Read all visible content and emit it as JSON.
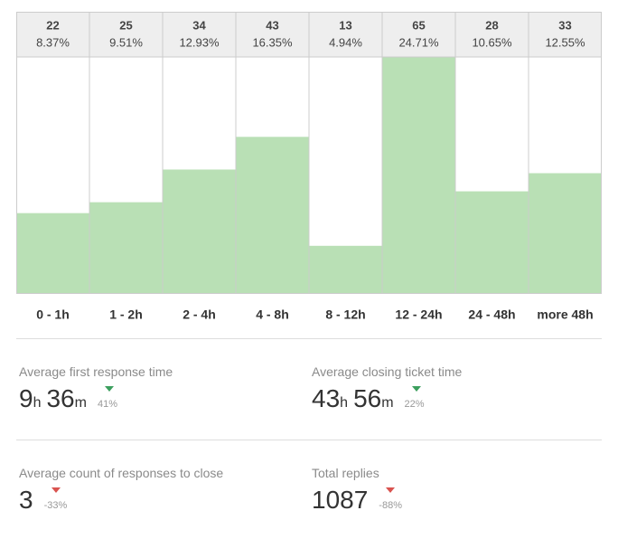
{
  "chart_data": {
    "type": "bar",
    "categories": [
      "0 - 1h",
      "1 - 2h",
      "2 - 4h",
      "4 - 8h",
      "8 - 12h",
      "12 - 24h",
      "24 - 48h",
      "more 48h"
    ],
    "values": [
      22,
      25,
      34,
      43,
      13,
      65,
      28,
      33
    ],
    "percent_labels": [
      "8.37%",
      "9.51%",
      "12.93%",
      "16.35%",
      "4.94%",
      "24.71%",
      "10.65%",
      "12.55%"
    ],
    "color": "#b9e0b5",
    "ylim": [
      0,
      65
    ]
  },
  "stats": [
    {
      "label": "Average first response time",
      "value": [
        {
          "number": 9,
          "unit": "h"
        },
        {
          "number": 36,
          "unit": "m"
        }
      ],
      "change": "41%",
      "trend_color": "#3c9f5e"
    },
    {
      "label": "Average closing ticket time",
      "value": [
        {
          "number": 43,
          "unit": "h"
        },
        {
          "number": 56,
          "unit": "m"
        }
      ],
      "change": "22%",
      "trend_color": "#3c9f5e"
    },
    {
      "label": "Average count of responses to close",
      "value": [
        {
          "number": 3
        }
      ],
      "change": "-33%",
      "trend_color": "#d9534f"
    },
    {
      "label": "Total replies",
      "value": [
        {
          "number": 1087
        }
      ],
      "change": "-88%",
      "trend_color": "#d9534f"
    }
  ]
}
